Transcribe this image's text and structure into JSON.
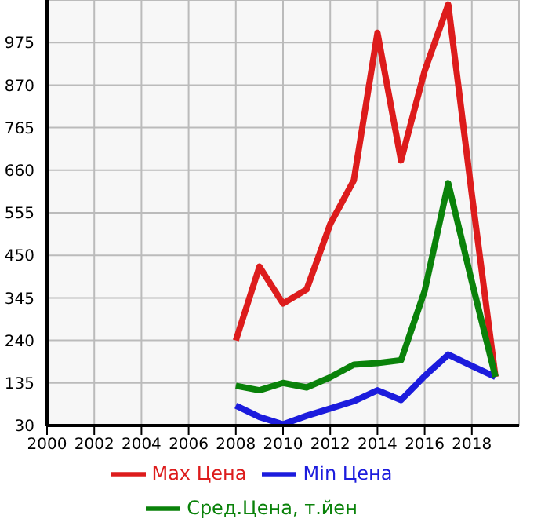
{
  "chart_data": {
    "type": "line",
    "x": [
      2008,
      2009,
      2010,
      2011,
      2012,
      2013,
      2014,
      2015,
      2016,
      2017,
      2018,
      2019
    ],
    "series": [
      {
        "name": "Max Цена",
        "color": "#dd1c1c",
        "values": [
          240,
          422,
          331,
          366,
          527,
          635,
          999,
          684,
          905,
          1069,
          600,
          150
        ]
      },
      {
        "name": "Min Цена",
        "color": "#1c1cdd",
        "values": [
          79,
          51,
          33,
          54,
          72,
          90,
          117,
          93,
          152,
          205,
          177,
          150
        ]
      },
      {
        "name": "Сред.Цена, т.йен",
        "color": "#0a820a",
        "values": [
          128,
          117,
          135,
          124,
          149,
          180,
          184,
          191,
          362,
          628,
          385,
          150
        ]
      }
    ],
    "xlim": [
      2000,
      2020
    ],
    "xticks": [
      2000,
      2002,
      2004,
      2006,
      2008,
      2010,
      2012,
      2014,
      2016,
      2018
    ],
    "ylim": [
      30,
      1080
    ],
    "yticks": [
      30,
      135,
      240,
      345,
      450,
      555,
      660,
      765,
      870,
      975
    ],
    "grid": true,
    "legend": "bottom",
    "marker": "none",
    "line_style": "solid"
  }
}
